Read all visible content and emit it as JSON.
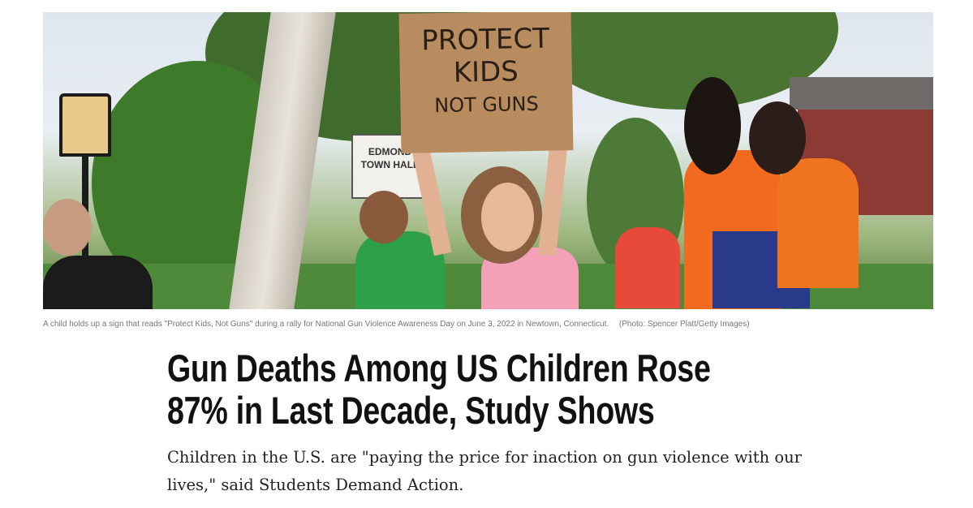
{
  "photo": {
    "sign_text": [
      "PROTECT",
      "KIDS",
      "NOT GUNS"
    ],
    "town_hall_sign": [
      "EDMOND",
      "TOWN HALL"
    ]
  },
  "caption": {
    "text": "A child holds up a sign that reads \"Protect Kids, Not Guns\" during a rally for National Gun Violence Awareness Day on June 3, 2022 in Newtown, Connecticut.",
    "credit": "(Photo: Spencer Platt/Getty Images)"
  },
  "article": {
    "headline": "Gun Deaths Among US Children Rose 87% in Last Decade, Study Shows",
    "dek": "Children in the U.S. are \"paying the price for inaction on gun violence with our lives,\" said Students Demand Action."
  }
}
